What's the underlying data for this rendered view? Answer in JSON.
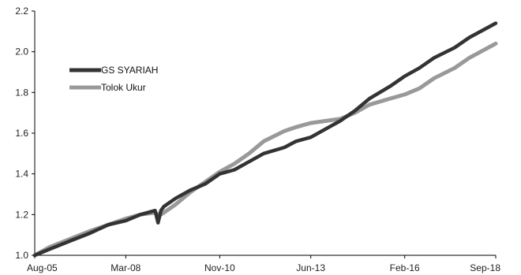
{
  "chart_data": {
    "type": "line",
    "title": "",
    "xlabel": "",
    "ylabel": "",
    "x_ticks": [
      "Aug-05",
      "Mar-08",
      "Nov-10",
      "Jun-13",
      "Feb-16",
      "Sep-18"
    ],
    "y_ticks": [
      "1.0",
      "1.2",
      "1.4",
      "1.6",
      "1.8",
      "2.0",
      "2.2"
    ],
    "ylim": [
      1.0,
      2.2
    ],
    "grid": false,
    "legend_placement": "upper-left",
    "x": [
      "Aug-05",
      "Jan-06",
      "Aug-06",
      "Mar-07",
      "Sep-07",
      "Mar-08",
      "Aug-08",
      "Jan-09",
      "Feb-09",
      "Mar-09",
      "Apr-09",
      "Aug-09",
      "Jan-10",
      "Jun-10",
      "Nov-10",
      "Apr-11",
      "Sep-11",
      "Feb-12",
      "Sep-12",
      "Jan-13",
      "Jun-13",
      "Nov-13",
      "Apr-14",
      "Sep-14",
      "Feb-15",
      "Sep-15",
      "Feb-16",
      "Jul-16",
      "Dec-16",
      "Jul-17",
      "Dec-17",
      "Sep-18"
    ],
    "series": [
      {
        "name": "GS SYARIAH",
        "color": "#333333",
        "values": [
          1.0,
          1.03,
          1.07,
          1.11,
          1.15,
          1.17,
          1.2,
          1.22,
          1.16,
          1.22,
          1.24,
          1.28,
          1.32,
          1.35,
          1.4,
          1.42,
          1.46,
          1.5,
          1.53,
          1.56,
          1.58,
          1.62,
          1.66,
          1.71,
          1.77,
          1.83,
          1.88,
          1.92,
          1.97,
          2.02,
          2.07,
          2.14
        ]
      },
      {
        "name": "Tolok Ukur",
        "color": "#999999",
        "values": [
          1.0,
          1.04,
          1.08,
          1.12,
          1.15,
          1.18,
          1.2,
          1.21,
          1.2,
          1.2,
          1.21,
          1.25,
          1.31,
          1.36,
          1.41,
          1.45,
          1.5,
          1.56,
          1.61,
          1.63,
          1.65,
          1.66,
          1.67,
          1.7,
          1.74,
          1.77,
          1.79,
          1.82,
          1.87,
          1.92,
          1.97,
          2.04
        ]
      }
    ]
  }
}
